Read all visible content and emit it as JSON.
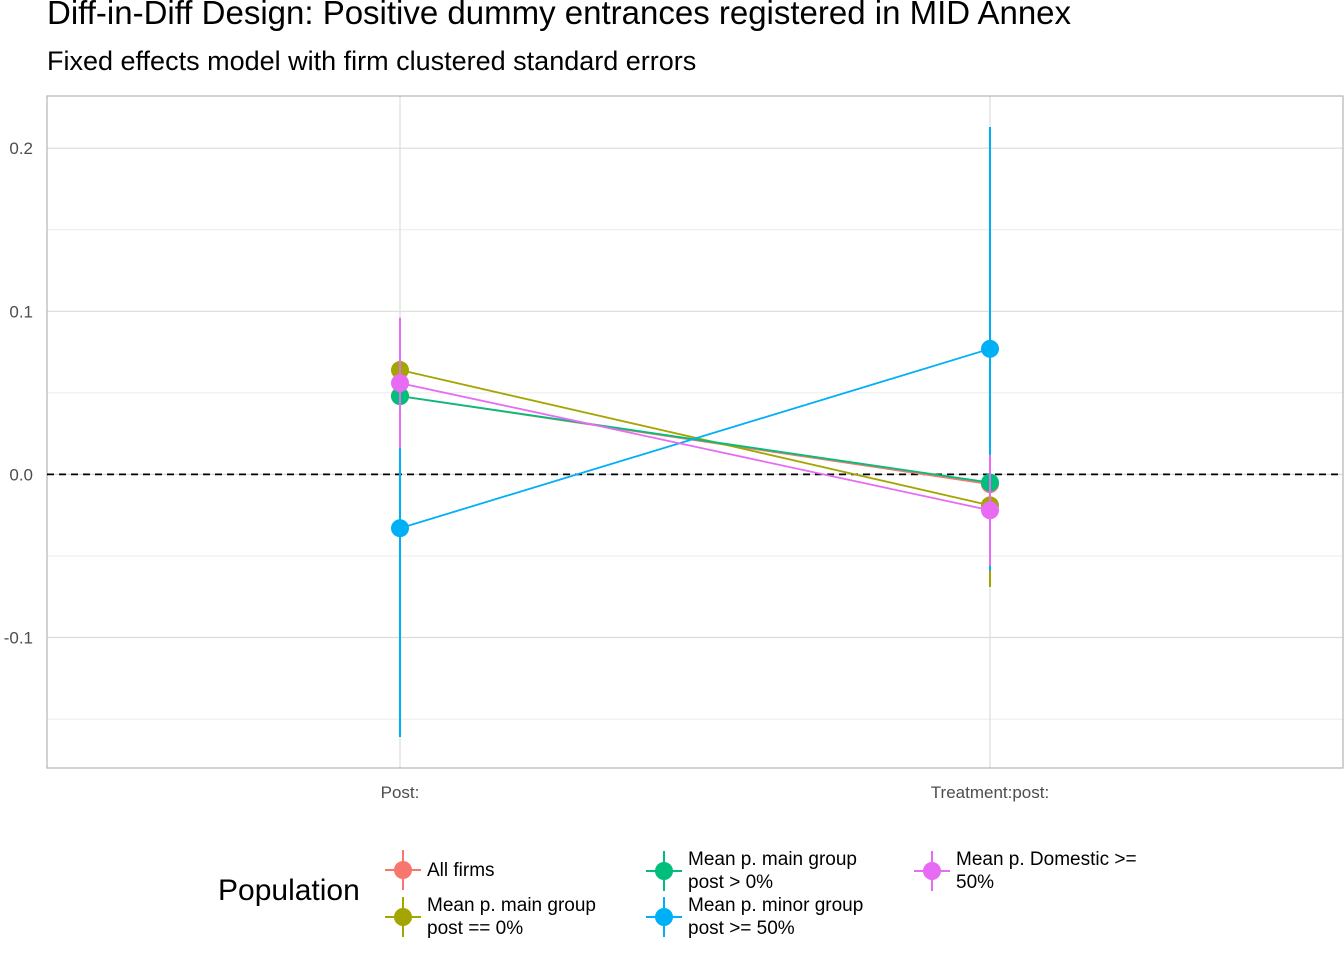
{
  "chart_data": {
    "type": "scatter",
    "title": "Diff-in-Diff Design: Positive dummy entrances registered in MID Annex",
    "subtitle": "Fixed effects model with firm clustered standard errors",
    "xlabel": "",
    "ylabel": "",
    "categories": [
      "Post:",
      "Treatment:post:"
    ],
    "ylim": [
      -0.18,
      0.232
    ],
    "yticks": [
      -0.1,
      0.0,
      0.1,
      0.2
    ],
    "ytick_labels": [
      "-0.1",
      "0.0",
      "0.1",
      "0.2"
    ],
    "reference_line": 0,
    "grid": true,
    "legend": {
      "title": "Population",
      "position": "bottom"
    },
    "series": [
      {
        "name": "All firms",
        "color": "#F8766D",
        "values": [
          0.048,
          -0.006
        ],
        "lower": [
          0.0,
          -0.03
        ],
        "upper": [
          0.096,
          0.018
        ]
      },
      {
        "name": "Mean p. main group\npost == 0%",
        "color": "#A3A500",
        "values": [
          0.064,
          -0.019
        ],
        "lower": [
          0.034,
          -0.069
        ],
        "upper": [
          0.094,
          0.031
        ]
      },
      {
        "name": "Mean p. main group\npost > 0%",
        "color": "#00BF7D",
        "values": [
          0.048,
          -0.005
        ],
        "lower": [
          0.0,
          -0.029
        ],
        "upper": [
          0.096,
          0.019
        ]
      },
      {
        "name": "Mean p. minor group\npost >= 50%",
        "color": "#00B0F6",
        "values": [
          -0.033,
          0.077
        ],
        "lower": [
          -0.161,
          -0.059
        ],
        "upper": [
          0.095,
          0.213
        ]
      },
      {
        "name": "Mean p. Domestic >=\n50%",
        "color": "#E76BF3",
        "values": [
          0.056,
          -0.022
        ],
        "lower": [
          0.016,
          -0.056
        ],
        "upper": [
          0.096,
          0.012
        ]
      }
    ]
  }
}
